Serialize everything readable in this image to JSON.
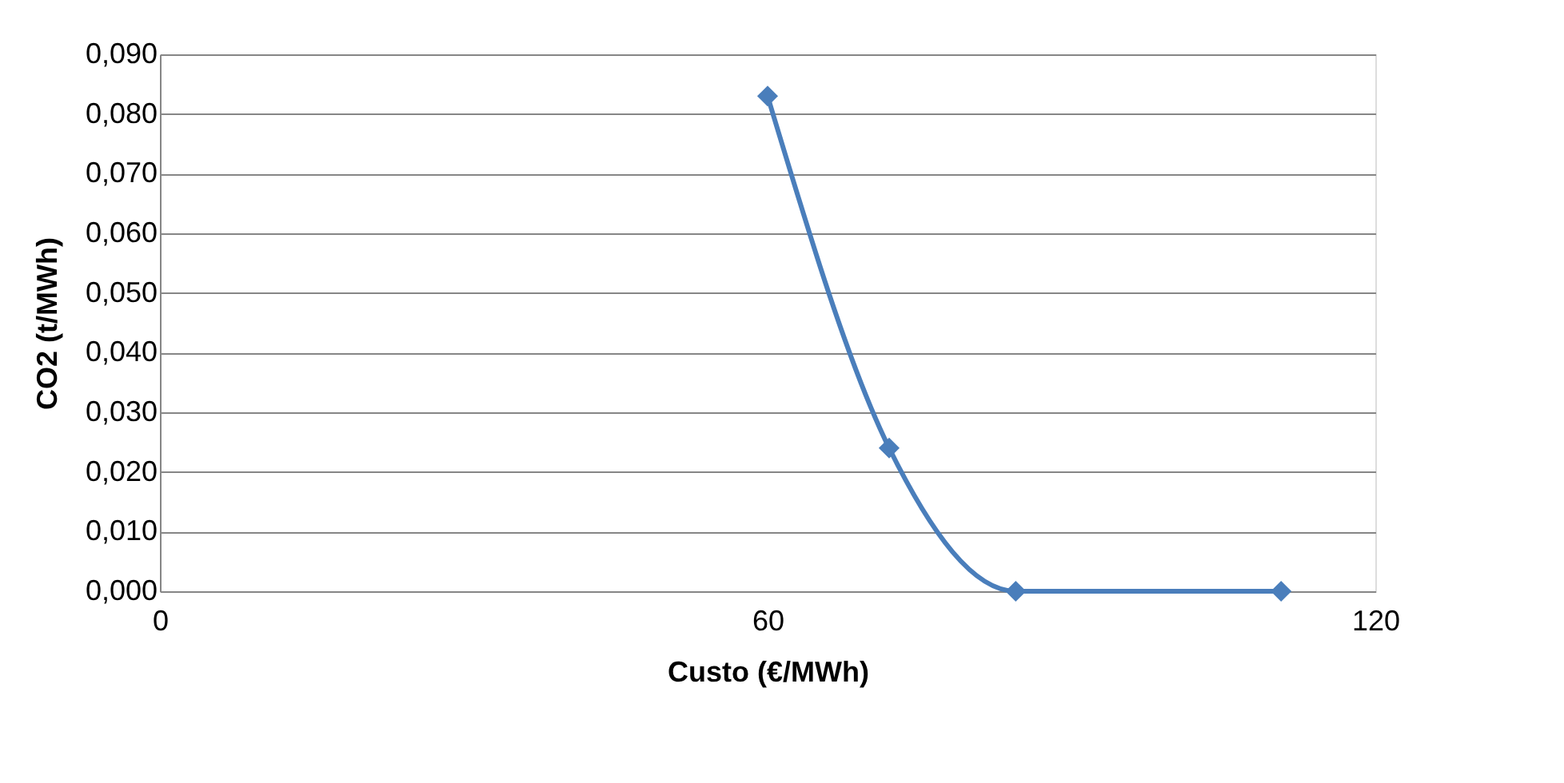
{
  "chart_data": {
    "type": "line",
    "xlabel": "Custo (€/MWh)",
    "ylabel": "CO2 (t/MWh)",
    "x": [
      60,
      72,
      84.5,
      110.7
    ],
    "series": [
      {
        "color": "#4a7ebb",
        "values": [
          0.083,
          0.024,
          0.0,
          0.0
        ]
      }
    ],
    "xlim": [
      0,
      120
    ],
    "xticks": [
      0,
      60,
      120
    ],
    "ylim": [
      0,
      0.09
    ],
    "yticks": [
      {
        "value": 0,
        "label": "0,000"
      },
      {
        "value": 0.01,
        "label": "0,010"
      },
      {
        "value": 0.02,
        "label": "0,020"
      },
      {
        "value": 0.03,
        "label": "0,030"
      },
      {
        "value": 0.04,
        "label": "0,040"
      },
      {
        "value": 0.05,
        "label": "0,050"
      },
      {
        "value": 0.06,
        "label": "0,060"
      },
      {
        "value": 0.07,
        "label": "0,070"
      },
      {
        "value": 0.08,
        "label": "0,080"
      },
      {
        "value": 0.09,
        "label": "0,090"
      }
    ],
    "grid": "y",
    "marker": "diamond",
    "line_style": "solid"
  }
}
